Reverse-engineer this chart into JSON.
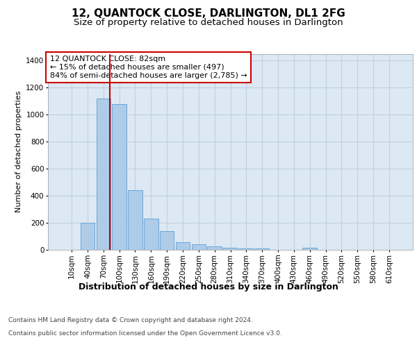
{
  "title": "12, QUANTOCK CLOSE, DARLINGTON, DL1 2FG",
  "subtitle": "Size of property relative to detached houses in Darlington",
  "xlabel": "Distribution of detached houses by size in Darlington",
  "ylabel": "Number of detached properties",
  "footer1": "Contains HM Land Registry data © Crown copyright and database right 2024.",
  "footer2": "Contains public sector information licensed under the Open Government Licence v3.0.",
  "annotation_title": "12 QUANTOCK CLOSE: 82sqm",
  "annotation_line1": "← 15% of detached houses are smaller (497)",
  "annotation_line2": "84% of semi-detached houses are larger (2,785) →",
  "property_size": 82,
  "bar_labels": [
    "10sqm",
    "40sqm",
    "70sqm",
    "100sqm",
    "130sqm",
    "160sqm",
    "190sqm",
    "220sqm",
    "250sqm",
    "280sqm",
    "310sqm",
    "340sqm",
    "370sqm",
    "400sqm",
    "430sqm",
    "460sqm",
    "490sqm",
    "520sqm",
    "550sqm",
    "580sqm",
    "610sqm"
  ],
  "bar_values": [
    0,
    200,
    1120,
    1080,
    440,
    230,
    140,
    55,
    40,
    25,
    15,
    12,
    12,
    0,
    0,
    15,
    0,
    0,
    0,
    0,
    0
  ],
  "bar_color": "#aecce8",
  "bar_edge_color": "#5a9fd4",
  "red_line_color": "#cc0000",
  "annotation_box_color": "#ffffff",
  "annotation_box_edge": "#cc0000",
  "grid_color": "#c0d0e0",
  "bg_color": "#ffffff",
  "plot_bg_color": "#dce8f4",
  "ylim": [
    0,
    1450
  ],
  "yticks": [
    0,
    200,
    400,
    600,
    800,
    1000,
    1200,
    1400
  ],
  "title_fontsize": 11,
  "subtitle_fontsize": 9.5,
  "xlabel_fontsize": 9,
  "ylabel_fontsize": 8,
  "tick_fontsize": 7.5,
  "annotation_fontsize": 8,
  "footer_fontsize": 6.5
}
